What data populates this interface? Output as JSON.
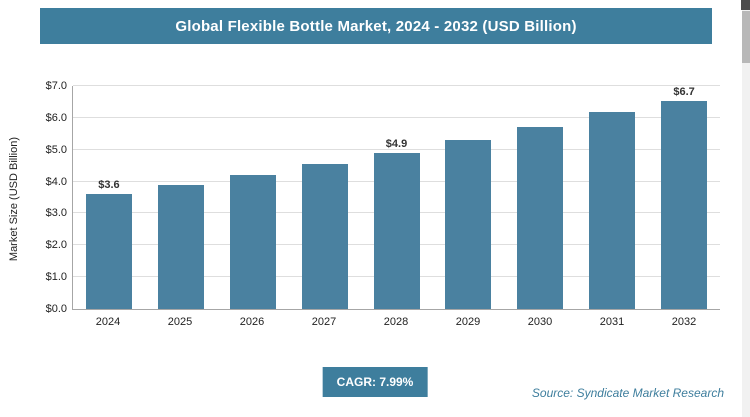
{
  "header": {
    "title": "Global Flexible Bottle Market, 2024 - 2032 (USD Billion)"
  },
  "chart_data": {
    "type": "bar",
    "title": "Global Flexible Bottle Market, 2024 - 2032 (USD Billion)",
    "categories": [
      "2024",
      "2025",
      "2026",
      "2027",
      "2028",
      "2029",
      "2030",
      "2031",
      "2032"
    ],
    "values": [
      3.6,
      3.9,
      4.2,
      4.55,
      4.9,
      5.3,
      5.7,
      6.2,
      6.7
    ],
    "bar_labels": [
      "$3.6",
      "",
      "",
      "",
      "$4.9",
      "",
      "",
      "",
      "$6.7"
    ],
    "xlabel": "",
    "ylabel": "Market Size (USD Billion)",
    "ylim": [
      0,
      7
    ],
    "ytick_step": 1,
    "ytick_labels": [
      "$0.0",
      "$1.0",
      "$2.0",
      "$3.0",
      "$4.0",
      "$5.0",
      "$6.0",
      "$7.0"
    ],
    "grid": true,
    "legend": "none",
    "bar_color": "#4a81a0"
  },
  "footer": {
    "cagr_label": "CAGR: 7.99%",
    "source": "Source: Syndicate Market Research"
  },
  "colors": {
    "accent_teal": "#3e7e9d",
    "bar_fill": "#4a81a0",
    "gridline": "#dedede",
    "axis_line": "#a6a6a6",
    "value_label_text": "#333333",
    "banner_text": "#ffffff"
  }
}
